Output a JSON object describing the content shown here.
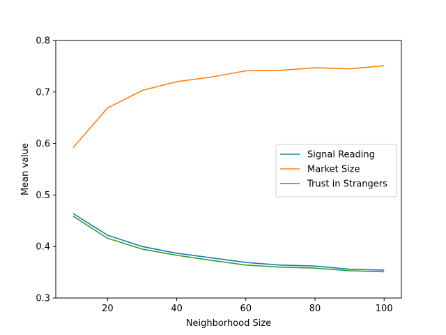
{
  "chart_data": {
    "type": "line",
    "title": "",
    "xlabel": "Neighborhood Size",
    "ylabel": "Mean value",
    "x": [
      10,
      20,
      30,
      40,
      50,
      60,
      70,
      80,
      90,
      100
    ],
    "xlim": [
      5,
      105
    ],
    "ylim": [
      0.3,
      0.8
    ],
    "xticks": [
      20,
      40,
      60,
      80,
      100
    ],
    "yticks": [
      0.3,
      0.4,
      0.5,
      0.6,
      0.7,
      0.8
    ],
    "xtick_labels": [
      "20",
      "40",
      "60",
      "80",
      "100"
    ],
    "ytick_labels": [
      "0.3",
      "0.4",
      "0.5",
      "0.6",
      "0.7",
      "0.8"
    ],
    "grid": false,
    "legend_position": "center-right",
    "series": [
      {
        "name": "Signal Reading",
        "color": "#1f77b4",
        "values": [
          0.464,
          0.422,
          0.4,
          0.387,
          0.378,
          0.369,
          0.364,
          0.362,
          0.356,
          0.354
        ]
      },
      {
        "name": "Market Size",
        "color": "#ff7f0e",
        "values": [
          0.592,
          0.669,
          0.703,
          0.72,
          0.729,
          0.741,
          0.742,
          0.747,
          0.745,
          0.751
        ]
      },
      {
        "name": "Trust in Strangers",
        "color": "#2ca02c",
        "values": [
          0.459,
          0.416,
          0.395,
          0.383,
          0.373,
          0.364,
          0.36,
          0.358,
          0.353,
          0.351
        ]
      }
    ]
  }
}
